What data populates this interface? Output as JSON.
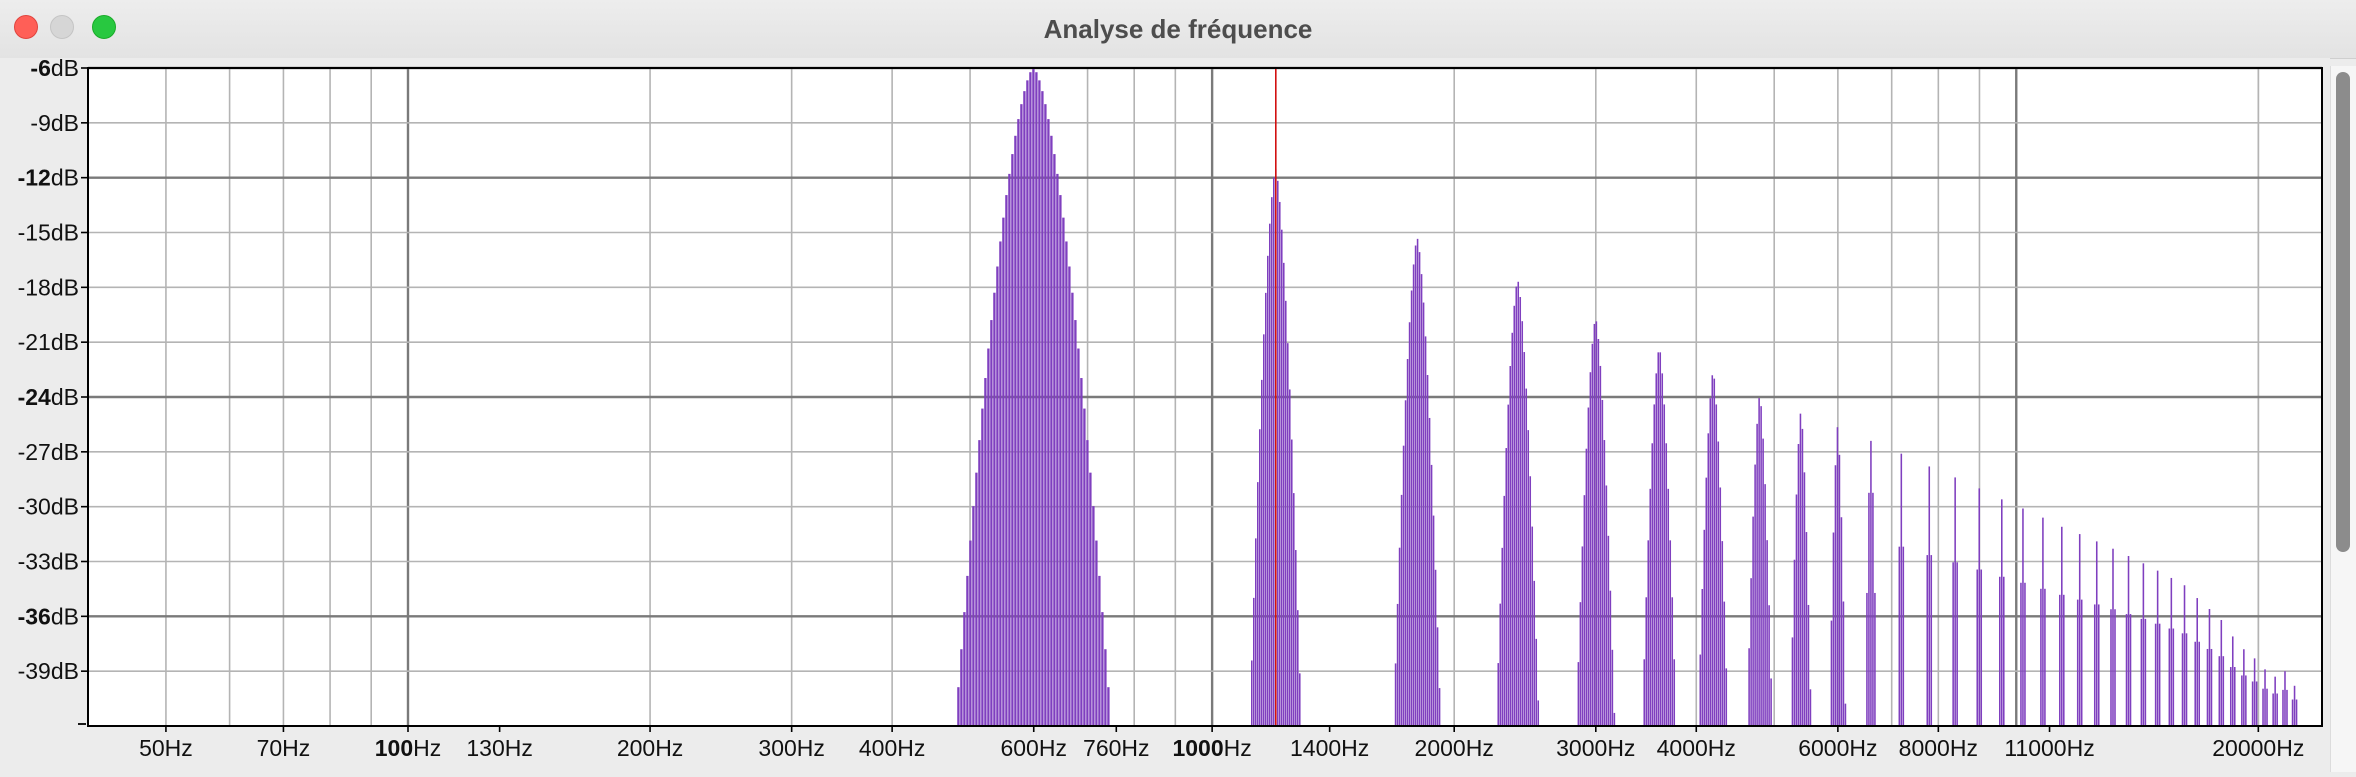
{
  "window": {
    "title": "Analyse de fréquence"
  },
  "colors": {
    "spectrum": "#7f3fbf",
    "cursor": "#d21010",
    "grid": "#b4b4b4",
    "grid_major": "#7a7a7a",
    "plot_bg": "#ffffff"
  },
  "chart_data": {
    "type": "area",
    "title": "",
    "xlabel": "",
    "ylabel": "",
    "x_scale": "log",
    "xlim": [
      40,
      24000
    ],
    "ylim": [
      -42,
      -6
    ],
    "grid": true,
    "y_ticks": [
      {
        "value": -6,
        "label": "-6dB",
        "bold": true
      },
      {
        "value": -9,
        "label": "-9dB",
        "bold": false
      },
      {
        "value": -12,
        "label": "-12dB",
        "bold": true
      },
      {
        "value": -15,
        "label": "-15dB",
        "bold": false
      },
      {
        "value": -18,
        "label": "-18dB",
        "bold": false
      },
      {
        "value": -21,
        "label": "-21dB",
        "bold": false
      },
      {
        "value": -24,
        "label": "-24dB",
        "bold": true
      },
      {
        "value": -27,
        "label": "-27dB",
        "bold": false
      },
      {
        "value": -30,
        "label": "-30dB",
        "bold": false
      },
      {
        "value": -33,
        "label": "-33dB",
        "bold": false
      },
      {
        "value": -36,
        "label": "-36dB",
        "bold": true
      },
      {
        "value": -39,
        "label": "-39dB",
        "bold": false
      }
    ],
    "x_ticks": [
      {
        "value": 50,
        "label": "50Hz"
      },
      {
        "value": 70,
        "label": "70Hz"
      },
      {
        "value": 100,
        "label": "100Hz",
        "bold": true
      },
      {
        "value": 130,
        "label": "130Hz"
      },
      {
        "value": 200,
        "label": "200Hz"
      },
      {
        "value": 300,
        "label": "300Hz"
      },
      {
        "value": 400,
        "label": "400Hz"
      },
      {
        "value": 600,
        "label": "600Hz"
      },
      {
        "value": 760,
        "label": "760Hz"
      },
      {
        "value": 1000,
        "label": "1000Hz",
        "bold": true
      },
      {
        "value": 1400,
        "label": "1400Hz"
      },
      {
        "value": 2000,
        "label": "2000Hz"
      },
      {
        "value": 3000,
        "label": "3000Hz"
      },
      {
        "value": 4000,
        "label": "4000Hz"
      },
      {
        "value": 6000,
        "label": "6000Hz"
      },
      {
        "value": 8000,
        "label": "8000Hz"
      },
      {
        "value": 11000,
        "label": "11000Hz"
      },
      {
        "value": 20000,
        "label": "20000Hz"
      }
    ],
    "cursor_hz": 1200,
    "series": [
      {
        "peaks": [
          {
            "freq": 600,
            "db": -6
          },
          {
            "freq": 1200,
            "db": -11.5
          },
          {
            "freq": 1800,
            "db": -15.3
          },
          {
            "freq": 2400,
            "db": -17.6
          },
          {
            "freq": 3000,
            "db": -19.7
          },
          {
            "freq": 3600,
            "db": -21.3
          },
          {
            "freq": 4200,
            "db": -22.6
          },
          {
            "freq": 4800,
            "db": -23.9
          },
          {
            "freq": 5400,
            "db": -24.8
          },
          {
            "freq": 6000,
            "db": -25.6
          },
          {
            "freq": 6600,
            "db": -26.4
          },
          {
            "freq": 7200,
            "db": -27.1
          },
          {
            "freq": 7800,
            "db": -27.8
          },
          {
            "freq": 8400,
            "db": -28.4
          },
          {
            "freq": 9000,
            "db": -29.0
          },
          {
            "freq": 9600,
            "db": -29.6
          },
          {
            "freq": 10200,
            "db": -30.1
          },
          {
            "freq": 10800,
            "db": -30.6
          },
          {
            "freq": 11400,
            "db": -31.1
          },
          {
            "freq": 12000,
            "db": -31.5
          },
          {
            "freq": 12600,
            "db": -31.9
          },
          {
            "freq": 13200,
            "db": -32.3
          },
          {
            "freq": 13800,
            "db": -32.7
          },
          {
            "freq": 14400,
            "db": -33.1
          },
          {
            "freq": 15000,
            "db": -33.5
          },
          {
            "freq": 15600,
            "db": -33.9
          },
          {
            "freq": 16200,
            "db": -34.3
          },
          {
            "freq": 16800,
            "db": -35.0
          },
          {
            "freq": 17400,
            "db": -35.6
          },
          {
            "freq": 18000,
            "db": -36.2
          },
          {
            "freq": 18600,
            "db": -37.1
          },
          {
            "freq": 19200,
            "db": -37.8
          },
          {
            "freq": 19800,
            "db": -38.3
          },
          {
            "freq": 20400,
            "db": -38.9
          },
          {
            "freq": 21000,
            "db": -39.3
          },
          {
            "freq": 21600,
            "db": -39.0
          },
          {
            "freq": 22200,
            "db": -39.8
          }
        ]
      }
    ]
  }
}
